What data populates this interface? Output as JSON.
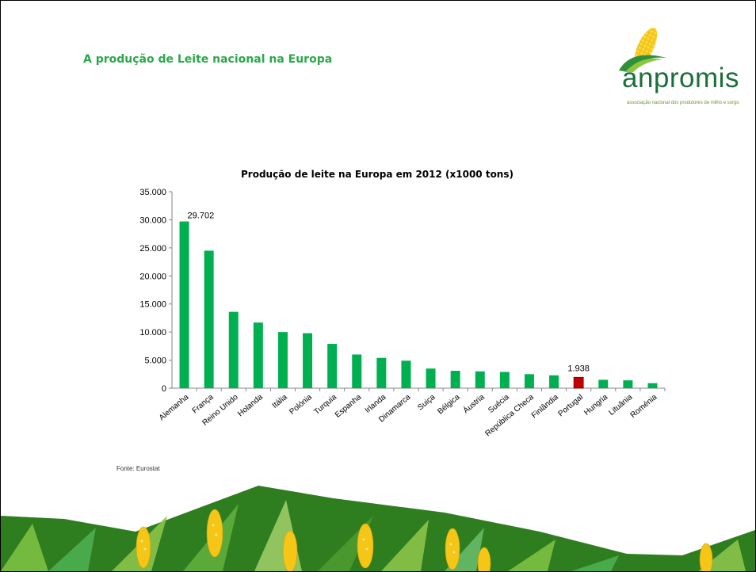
{
  "slide": {
    "title": "A produção de Leite nacional na Europa",
    "source": "Fonte: Eurostat"
  },
  "logo": {
    "word": "anpromis",
    "tagline": "associação nacional dos produtores de milho e sorgo"
  },
  "colors": {
    "bar": "#00b050",
    "highlight": "#c00000",
    "title_green": "#2aa84a",
    "logo_green": "#1a6f3a"
  },
  "chart_data": {
    "type": "bar",
    "title": "Produção de leite na Europa em 2012 (x1000 tons)",
    "xlabel": "",
    "ylabel": "",
    "ylim": [
      0,
      35000
    ],
    "yticks": [
      "0",
      "5.000",
      "10.000",
      "15.000",
      "20.000",
      "25.000",
      "30.000",
      "35.000"
    ],
    "categories": [
      "Alemanha",
      "França",
      "Reino Unido",
      "Holanda",
      "Itália",
      "Polónia",
      "Turquia",
      "Espanha",
      "Irlanda",
      "Dinamarca",
      "Suiça",
      "Bélgica",
      "Áustria",
      "Suécia",
      "República Checa",
      "Finlândia",
      "Portugal",
      "Hungria",
      "Lituânia",
      "Roménia"
    ],
    "values": [
      29702,
      24500,
      13600,
      11700,
      10000,
      9800,
      7900,
      6000,
      5400,
      4900,
      3500,
      3100,
      3000,
      2900,
      2500,
      2300,
      1938,
      1500,
      1400,
      900
    ],
    "highlight_category": "Portugal",
    "data_labels": [
      {
        "category": "Alemanha",
        "text": "29.702"
      },
      {
        "category": "Portugal",
        "text": "1.938"
      }
    ],
    "grid": false,
    "legend": "none"
  }
}
